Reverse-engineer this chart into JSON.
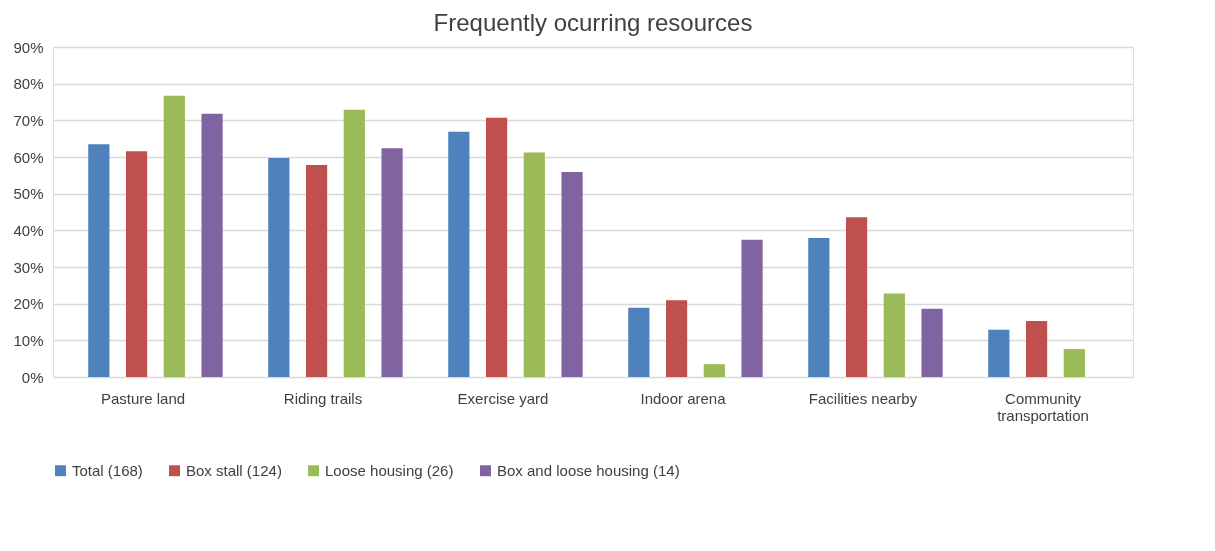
{
  "chart_data": {
    "type": "bar",
    "title": "Frequently ocurring resources",
    "categories": [
      "Pasture land",
      "Riding trails",
      "Exercise yard",
      "Indoor arena",
      "Facilities nearby",
      "Community transportation"
    ],
    "series": [
      {
        "name": "Total (168)",
        "color": "#4f81bd",
        "values": [
          63.5,
          59.7,
          66.9,
          18.9,
          37.9,
          12.9
        ]
      },
      {
        "name": "Box stall (124)",
        "color": "#c0504d",
        "values": [
          61.6,
          57.8,
          70.7,
          20.9,
          43.6,
          15.3
        ]
      },
      {
        "name": "Loose housing (26)",
        "color": "#9bbb59",
        "values": [
          76.7,
          72.9,
          61.2,
          3.5,
          22.8,
          7.6
        ]
      },
      {
        "name": "Box and loose housing (14)",
        "color": "#8064a2",
        "values": [
          71.8,
          62.4,
          55.9,
          37.4,
          18.6,
          null
        ]
      }
    ],
    "ylim": [
      0,
      90
    ],
    "yticks": [
      {
        "value": 0,
        "label": "0%"
      },
      {
        "value": 10,
        "label": "10%"
      },
      {
        "value": 20,
        "label": "20%"
      },
      {
        "value": 30,
        "label": "30%"
      },
      {
        "value": 40,
        "label": "40%"
      },
      {
        "value": 50,
        "label": "50%"
      },
      {
        "value": 60,
        "label": "60%"
      },
      {
        "value": 70,
        "label": "70%"
      },
      {
        "value": 80,
        "label": "80%"
      },
      {
        "value": 90,
        "label": "90%"
      }
    ],
    "grid": "y",
    "legend": "bottom"
  }
}
